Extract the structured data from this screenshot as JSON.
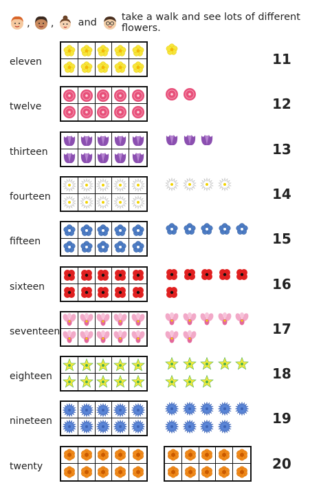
{
  "header": {
    "sep1": ",",
    "sep2": ",",
    "and_word": "and",
    "text": "take a walk and see lots of different flowers."
  },
  "rows": [
    {
      "word": "eleven",
      "number": "11",
      "count": 11,
      "flower": "yellow-primrose",
      "color": "#f7e53b"
    },
    {
      "word": "twelve",
      "number": "12",
      "count": 12,
      "flower": "pink-flower",
      "color": "#e8507a"
    },
    {
      "word": "thirteen",
      "number": "13",
      "count": 13,
      "flower": "purple-tulip",
      "color": "#8b4fb0"
    },
    {
      "word": "fourteen",
      "number": "14",
      "count": 14,
      "flower": "daisy",
      "color": "#ffffff"
    },
    {
      "word": "fifteen",
      "number": "15",
      "count": 15,
      "flower": "blue-forget-me-not",
      "color": "#4d7cc4"
    },
    {
      "word": "sixteen",
      "number": "16",
      "count": 16,
      "flower": "red-poppy",
      "color": "#e02020"
    },
    {
      "word": "seventeen",
      "number": "17",
      "count": 17,
      "flower": "pink-orchid",
      "color": "#f2a9c8"
    },
    {
      "word": "eighteen",
      "number": "18",
      "count": 18,
      "flower": "yellow-star-flower",
      "color": "#f2ea3a"
    },
    {
      "word": "nineteen",
      "number": "19",
      "count": 19,
      "flower": "blue-cornflower",
      "color": "#5a85d6"
    },
    {
      "word": "twenty",
      "number": "20",
      "count": 20,
      "flower": "orange-marigold",
      "color": "#f08a1c"
    }
  ]
}
